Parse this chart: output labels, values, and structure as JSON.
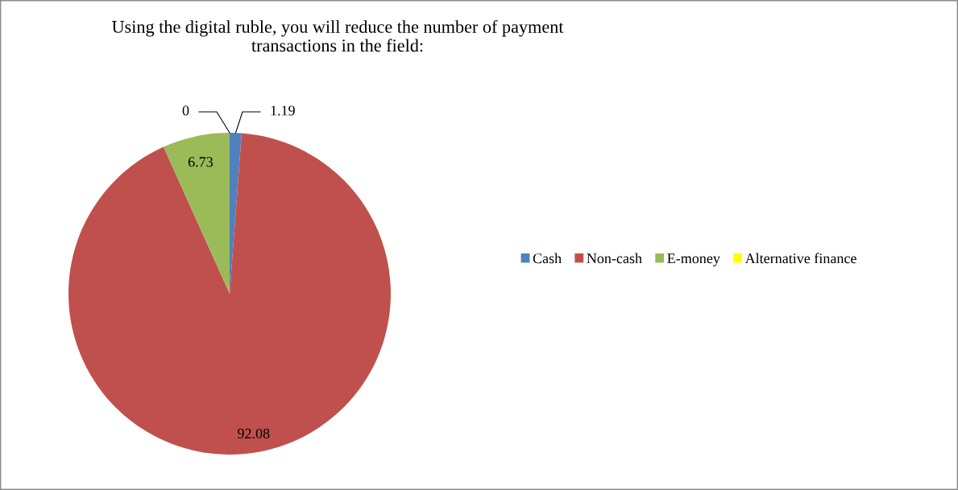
{
  "chart_data": {
    "type": "pie",
    "title": "Using the digital ruble, you will reduce the number of payment\ntransactions in the field:",
    "categories": [
      "Cash",
      "Non-cash",
      "E-money",
      "Alternative finance"
    ],
    "values": [
      1.19,
      92.08,
      6.73,
      0
    ],
    "colors": [
      "#4f81bd",
      "#c0504d",
      "#9bbb59",
      "#ffff00"
    ],
    "value_labels": [
      "1.19",
      "92.08",
      "6.73",
      "0"
    ],
    "legend": "right"
  }
}
